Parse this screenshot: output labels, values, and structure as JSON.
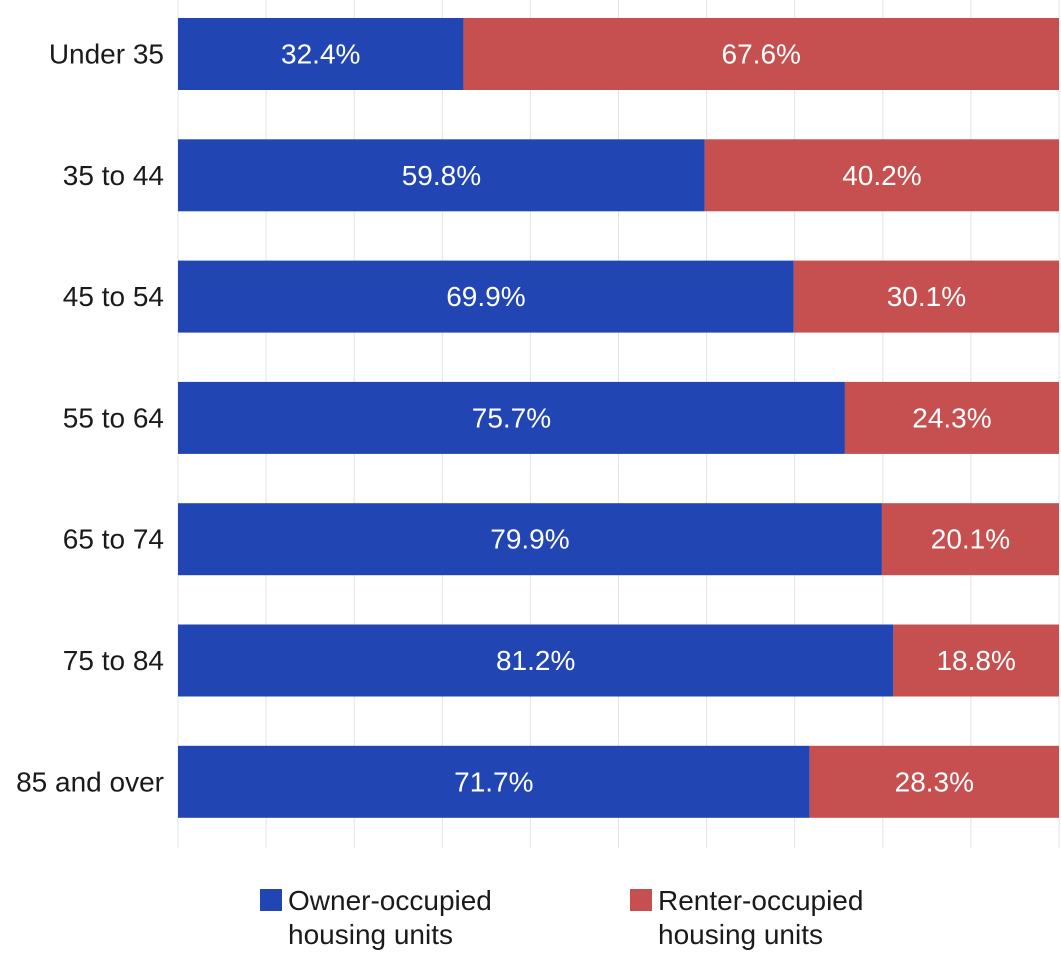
{
  "chart_data": {
    "type": "bar",
    "orientation": "horizontal",
    "stacked": true,
    "categories": [
      "Under 35",
      "35 to 44",
      "45 to 54",
      "55 to 64",
      "65 to 74",
      "75 to 84",
      "85 and over"
    ],
    "series": [
      {
        "name": "Owner-occupied housing units",
        "color": "#2146b4",
        "values": [
          32.4,
          59.8,
          69.9,
          75.7,
          79.9,
          81.2,
          71.7
        ],
        "labels": [
          "32.4%",
          "59.8%",
          "69.9%",
          "75.7%",
          "79.9%",
          "81.2%",
          "71.7%"
        ]
      },
      {
        "name": "Renter-occupied housing units",
        "color": "#c5504f",
        "values": [
          67.6,
          40.2,
          30.1,
          24.3,
          20.1,
          18.8,
          28.3
        ],
        "labels": [
          "67.6%",
          "40.2%",
          "30.1%",
          "24.3%",
          "20.1%",
          "18.8%",
          "28.3%"
        ]
      }
    ],
    "xlim": [
      0,
      100
    ],
    "grid": true,
    "legend_position": "bottom",
    "title": "",
    "xlabel": "",
    "ylabel": ""
  },
  "legend": {
    "owner_line1": "Owner-occupied",
    "owner_line2": "housing units",
    "renter_line1": "Renter-occupied",
    "renter_line2": "housing units"
  }
}
